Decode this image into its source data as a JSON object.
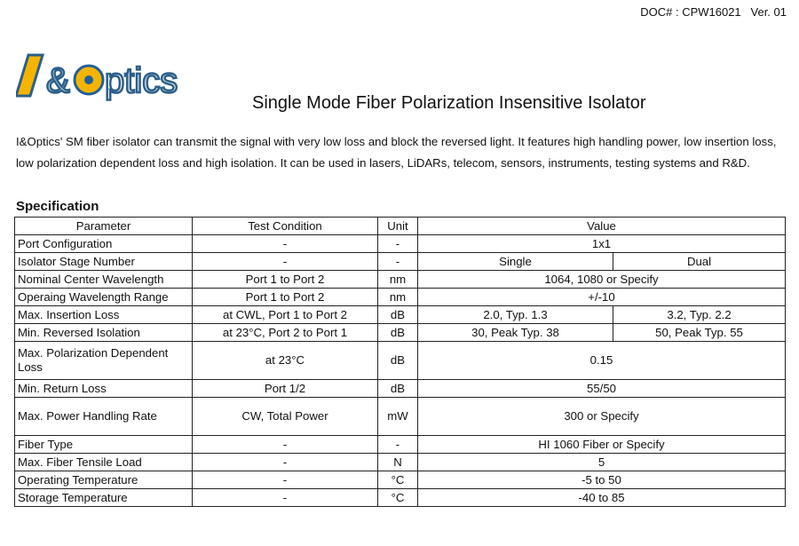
{
  "header": {
    "doc_number": "DOC# : CPW16021",
    "version": "Ver. 01"
  },
  "logo": {
    "text": "I&Optics",
    "colors": {
      "yellow": "#f5b400",
      "blue": "#1f5f9c"
    }
  },
  "title": "Single Mode Fiber Polarization Insensitive Isolator",
  "intro": "I&Optics' SM fiber isolator can transmit the signal with very low loss and block the reversed light. It features high handling power, low insertion loss, low polarization dependent loss and high isolation. It can be used in lasers, LiDARs, telecom, sensors, instruments, testing systems and R&D.",
  "section_title": "Specification",
  "table": {
    "headers": [
      "Parameter",
      "Test Condition",
      "Unit",
      "Value"
    ],
    "rows": [
      {
        "param": "Port Configuration",
        "cond": "-",
        "unit": "-",
        "value": "1x1"
      },
      {
        "param": "Isolator Stage Number",
        "cond": "-",
        "unit": "-",
        "single": "Single",
        "dual": "Dual"
      },
      {
        "param": "Nominal Center Wavelength",
        "cond": "Port 1 to Port 2",
        "unit": "nm",
        "value": "1064, 1080 or Specify"
      },
      {
        "param": "Operaing Wavelength Range",
        "cond": "Port 1 to Port 2",
        "unit": "nm",
        "value": "+/-10"
      },
      {
        "param": "Max. Insertion Loss",
        "cond": "at CWL, Port 1 to Port 2",
        "unit": "dB",
        "single": "2.0, Typ. 1.3",
        "dual": "3.2, Typ. 2.2"
      },
      {
        "param": "Min. Reversed Isolation",
        "cond": "at 23°C, Port 2 to Port 1",
        "unit": "dB",
        "single": "30, Peak Typ. 38",
        "dual": "50, Peak Typ. 55"
      },
      {
        "param": "Max. Polarization Dependent Loss",
        "cond": "at 23°C",
        "unit": "dB",
        "value": "0.15",
        "tall": true
      },
      {
        "param": "Min. Return Loss",
        "cond": "Port 1/2",
        "unit": "dB",
        "value": "55/50"
      },
      {
        "param": "Max. Power Handling Rate",
        "cond": "CW, Total Power",
        "unit": "mW",
        "value": "300 or Specify",
        "tall": true
      },
      {
        "param": "Fiber Type",
        "cond": "-",
        "unit": "-",
        "value": "HI 1060 Fiber or Specify"
      },
      {
        "param": "Max. Fiber Tensile Load",
        "cond": "-",
        "unit": "N",
        "value": "5"
      },
      {
        "param": "Operating Temperature",
        "cond": "-",
        "unit": "°C",
        "value": "-5 to 50"
      },
      {
        "param": "Storage Temperature",
        "cond": "-",
        "unit": "°C",
        "value": "-40 to 85"
      }
    ]
  }
}
